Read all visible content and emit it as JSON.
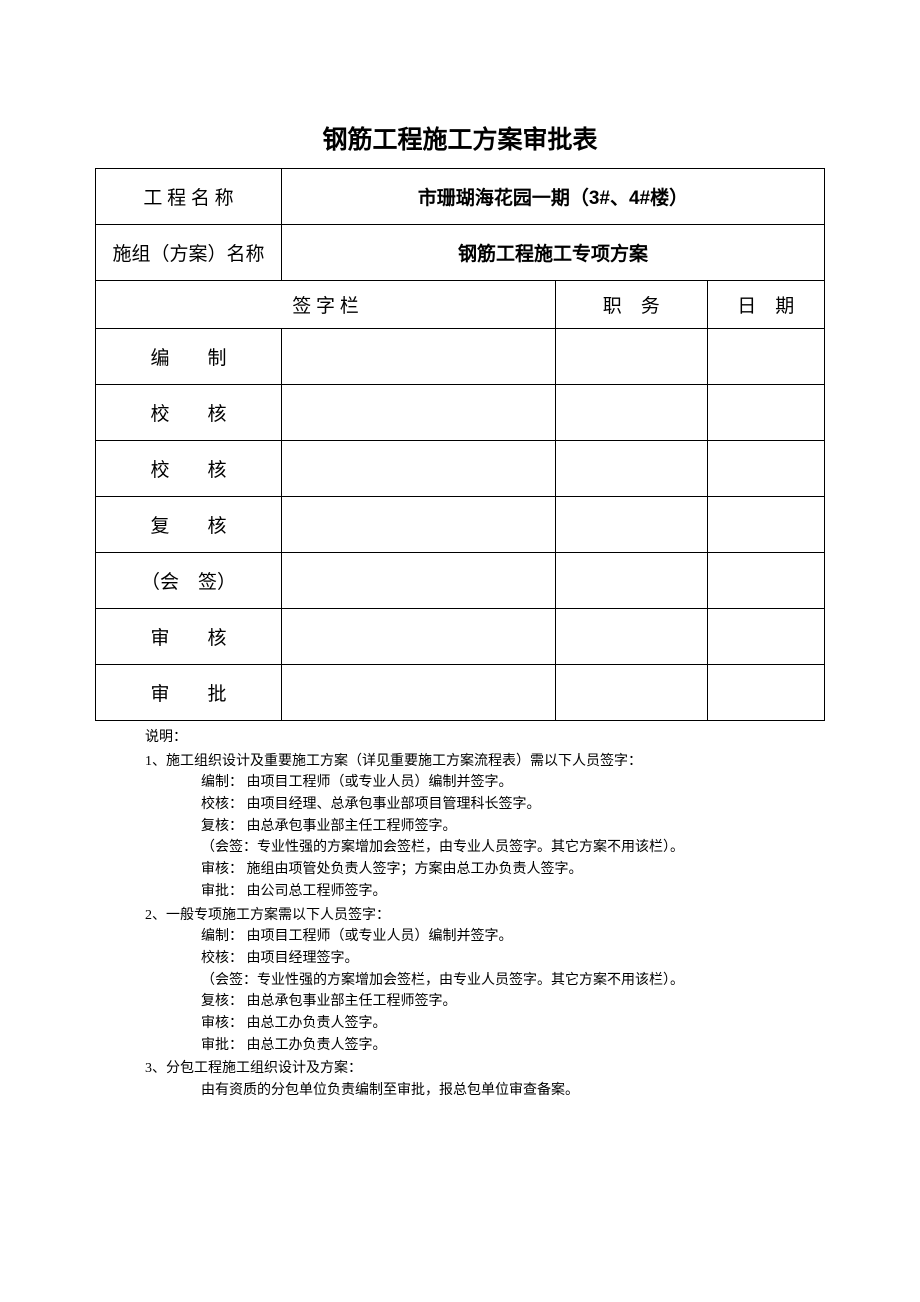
{
  "title": "钢筋工程施工方案审批表",
  "header": {
    "project_name_label": "工 程 名 称",
    "project_name_value": "市珊瑚海花园一期（3#、4#楼）",
    "plan_name_label": "施组（方案）名称",
    "plan_name_value": "钢筋工程施工专项方案"
  },
  "signature_section": {
    "signature_col": "签 字 栏",
    "position_col": "职　务",
    "date_col": "日　期",
    "rows": [
      {
        "label": "编　　制",
        "sign": "",
        "position": "",
        "date": ""
      },
      {
        "label": "校　　核",
        "sign": "",
        "position": "",
        "date": ""
      },
      {
        "label": "校　　核",
        "sign": "",
        "position": "",
        "date": ""
      },
      {
        "label": "复　　核",
        "sign": "",
        "position": "",
        "date": ""
      },
      {
        "label": "（会　签）",
        "sign": "",
        "position": "",
        "date": ""
      },
      {
        "label": "审　　核",
        "sign": "",
        "position": "",
        "date": ""
      },
      {
        "label": "审　　批",
        "sign": "",
        "position": "",
        "date": ""
      }
    ]
  },
  "notes": {
    "title": "说明：",
    "section1": {
      "heading": "1、施工组织设计及重要施工方案（详见重要施工方案流程表）需以下人员签字：",
      "items": [
        "编制：  由项目工程师（或专业人员）编制并签字。",
        "校核：  由项目经理、总承包事业部项目管理科长签字。",
        "复核：  由总承包事业部主任工程师签字。",
        "（会签：专业性强的方案增加会签栏，由专业人员签字。其它方案不用该栏）。",
        "审核：  施组由项管处负责人签字；方案由总工办负责人签字。",
        "审批：  由公司总工程师签字。"
      ]
    },
    "section2": {
      "heading": "2、一般专项施工方案需以下人员签字：",
      "items": [
        "编制：  由项目工程师（或专业人员）编制并签字。",
        "校核：  由项目经理签字。",
        "（会签：专业性强的方案增加会签栏，由专业人员签字。其它方案不用该栏）。",
        "复核：  由总承包事业部主任工程师签字。",
        "审核：  由总工办负责人签字。",
        "审批：  由总工办负责人签字。"
      ]
    },
    "section3": {
      "heading": "3、分包工程施工组织设计及方案：",
      "items": [
        "由有资质的分包单位负责编制至审批，报总包单位审查备案。"
      ]
    }
  },
  "colors": {
    "background": "#ffffff",
    "border": "#000000",
    "text": "#000000"
  }
}
